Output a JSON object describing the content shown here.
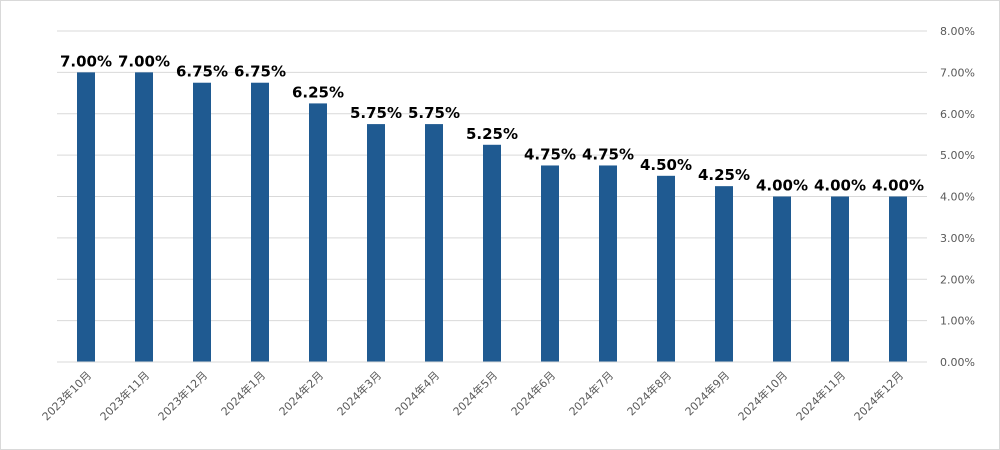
{
  "chart_data": {
    "type": "bar",
    "categories": [
      "2023年10月",
      "2023年11月",
      "2023年12月",
      "2024年1月",
      "2024年2月",
      "2024年3月",
      "2024年4月",
      "2024年5月",
      "2024年6月",
      "2024年7月",
      "2024年8月",
      "2024年9月",
      "2024年10月",
      "2024年11月",
      "2024年12月"
    ],
    "values": [
      7.0,
      7.0,
      6.75,
      6.75,
      6.25,
      5.75,
      5.75,
      5.25,
      4.75,
      4.75,
      4.5,
      4.25,
      4.0,
      4.0,
      4.0
    ],
    "data_labels": [
      "7.00%",
      "7.00%",
      "6.75%",
      "6.75%",
      "6.25%",
      "5.75%",
      "5.75%",
      "5.25%",
      "4.75%",
      "4.75%",
      "4.50%",
      "4.25%",
      "4.00%",
      "4.00%",
      "4.00%"
    ],
    "ylim": [
      0,
      8
    ],
    "yticks": [
      0,
      1,
      2,
      3,
      4,
      5,
      6,
      7,
      8
    ],
    "ytick_labels": [
      "0.00%",
      "1.00%",
      "2.00%",
      "3.00%",
      "4.00%",
      "5.00%",
      "6.00%",
      "7.00%",
      "8.00%"
    ],
    "y_axis_side": "right",
    "grid": true,
    "legend": "none",
    "bar_color": "#1f5a91",
    "grid_color": "#d9d9d9",
    "title": "",
    "xlabel": "",
    "ylabel": ""
  }
}
